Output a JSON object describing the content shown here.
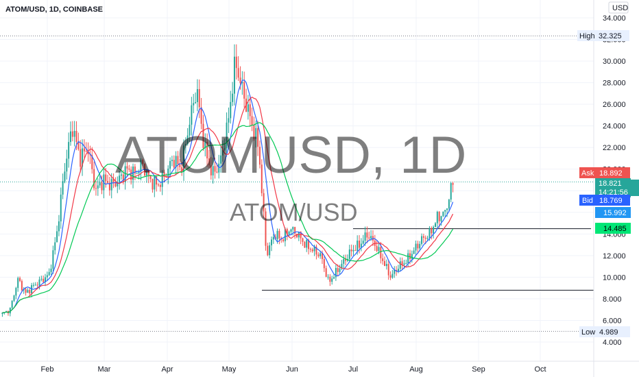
{
  "header": {
    "title": "ATOM/USD, 1D, COINBASE",
    "currency": "USD"
  },
  "watermark": {
    "symbol_interval": "ATOMUSD, 1D",
    "pair": "ATOM/USD"
  },
  "colors": {
    "up": "#26a69a",
    "down": "#ef5350",
    "ma_fast": "#2962ff",
    "ma_mid": "#f23645",
    "ma_slow": "#00c853",
    "grid": "#f0f3fa",
    "axis_text": "#131722"
  },
  "price_labels": {
    "high_label": "High",
    "high_value": "32.325",
    "ask_label": "Ask",
    "ask_value": "18.892",
    "last_value": "18.821",
    "countdown": "14:21:56",
    "bid_label": "Bid",
    "bid_value": "18.769",
    "ma_fast_value": "15.992",
    "ma_slow_value": "14.485",
    "low_label": "Low",
    "low_value": "4.989"
  },
  "chart_data": {
    "type": "candlestick",
    "title": "ATOM/USD, 1D, COINBASE",
    "yaxis": {
      "ticks": [
        "4.000",
        "6.000",
        "8.000",
        "10.000",
        "12.000",
        "14.000",
        "16.000",
        "18.000",
        "20.000",
        "22.000",
        "24.000",
        "26.000",
        "28.000",
        "30.000",
        "32.000",
        "34.000"
      ],
      "min": 3,
      "max": 35
    },
    "xaxis": {
      "ticks": [
        "Feb",
        "Mar",
        "Apr",
        "May",
        "Jun",
        "Jul",
        "Aug",
        "Sep",
        "Oct"
      ]
    },
    "series": [
      {
        "kind": "ohlc_close_approx",
        "points": [
          [
            "Jan 1",
            6.6
          ],
          [
            "Jan 5",
            7.0
          ],
          [
            "Jan 10",
            9.8
          ],
          [
            "Jan 15",
            8.5
          ],
          [
            "Jan 20",
            9.2
          ],
          [
            "Jan 25",
            9.7
          ],
          [
            "Jan 30",
            10.2
          ],
          [
            "Feb 3",
            14.0
          ],
          [
            "Feb 7",
            20.0
          ],
          [
            "Feb 10",
            24.0
          ],
          [
            "Feb 14",
            21.0
          ],
          [
            "Feb 18",
            22.0
          ],
          [
            "Feb 22",
            18.0
          ],
          [
            "Feb 26",
            19.0
          ],
          [
            "Mar 2",
            18.5
          ],
          [
            "Mar 6",
            19.0
          ],
          [
            "Mar 10",
            20.0
          ],
          [
            "Mar 14",
            19.5
          ],
          [
            "Mar 18",
            20.5
          ],
          [
            "Mar 22",
            19.0
          ],
          [
            "Mar 26",
            18.5
          ],
          [
            "Mar 30",
            19.5
          ],
          [
            "Apr 3",
            21.0
          ],
          [
            "Apr 7",
            20.0
          ],
          [
            "Apr 11",
            24.0
          ],
          [
            "Apr 15",
            27.5
          ],
          [
            "Apr 19",
            22.0
          ],
          [
            "Apr 23",
            19.5
          ],
          [
            "Apr 27",
            20.5
          ],
          [
            "May 1",
            24.0
          ],
          [
            "May 5",
            30.0
          ],
          [
            "May 9",
            27.0
          ],
          [
            "May 13",
            24.5
          ],
          [
            "May 16",
            22.0
          ],
          [
            "May 19",
            12.0
          ],
          [
            "May 23",
            14.0
          ],
          [
            "May 27",
            13.5
          ],
          [
            "Jun 1",
            14.5
          ],
          [
            "Jun 5",
            14.0
          ],
          [
            "Jun 9",
            13.0
          ],
          [
            "Jun 13",
            12.5
          ],
          [
            "Jun 17",
            12.0
          ],
          [
            "Jun 21",
            9.5
          ],
          [
            "Jun 25",
            10.5
          ],
          [
            "Jun 29",
            11.5
          ],
          [
            "Jul 3",
            12.5
          ],
          [
            "Jul 7",
            13.0
          ],
          [
            "Jul 11",
            14.0
          ],
          [
            "Jul 15",
            13.0
          ],
          [
            "Jul 19",
            11.5
          ],
          [
            "Jul 23",
            10.0
          ],
          [
            "Jul 27",
            11.0
          ],
          [
            "Jul 31",
            11.5
          ],
          [
            "Aug 4",
            12.5
          ],
          [
            "Aug 8",
            13.5
          ],
          [
            "Aug 12",
            14.0
          ],
          [
            "Aug 16",
            15.5
          ],
          [
            "Aug 20",
            16.0
          ],
          [
            "Aug 23",
            18.8
          ]
        ]
      }
    ],
    "horizontal_lines": [
      {
        "value": 32.325,
        "style": "dotted"
      },
      {
        "value": 18.821,
        "style": "dotted"
      },
      {
        "value": 14.485,
        "style": "solid"
      },
      {
        "value": 8.8,
        "style": "solid"
      },
      {
        "value": 4.989,
        "style": "dotted"
      }
    ]
  }
}
